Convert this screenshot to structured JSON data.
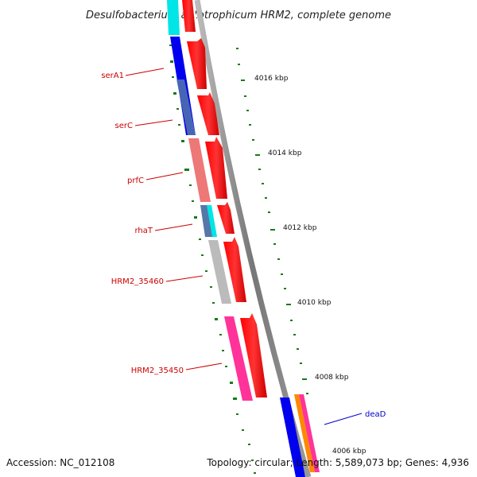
{
  "title": "Desulfobacterium autotrophicum HRM2, complete genome",
  "accession": "Accession: NC_012108",
  "summary": "Topology: circular; Length: 5,589,073 bp; Genes: 4,936",
  "ticks": [
    {
      "label": "4016 kbp"
    },
    {
      "label": "4014 kbp"
    },
    {
      "label": "4012 kbp"
    },
    {
      "label": "4010 kbp"
    },
    {
      "label": "4008 kbp"
    },
    {
      "label": "4006 kbp"
    }
  ],
  "genes": [
    {
      "name": "serA1",
      "color": "#cc0000"
    },
    {
      "name": "serC",
      "color": "#cc0000"
    },
    {
      "name": "prfC",
      "color": "#cc0000"
    },
    {
      "name": "rhaT",
      "color": "#cc0000"
    },
    {
      "name": "HRM2_35460",
      "color": "#cc0000"
    },
    {
      "name": "HRM2_35450",
      "color": "#cc0000"
    },
    {
      "name": "deaD",
      "color": "#0000cc"
    }
  ],
  "colors": {
    "cds": "#ff0000",
    "cog_cyan": "#00e5e5",
    "cog_blue": "#0000ee",
    "cog_steel": "#5577aa",
    "cog_salmon": "#ee7777",
    "cog_grey": "#bbbbbb",
    "cog_pink": "#ff3399",
    "cog_orange": "#ff8800",
    "backbone": "#888888",
    "gc_tick": "#1a7a1a"
  }
}
